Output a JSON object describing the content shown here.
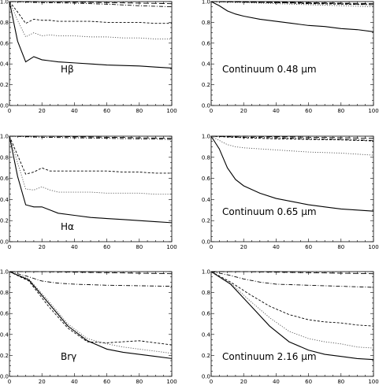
{
  "chart_data": [
    {
      "type": "line",
      "label": "Hβ",
      "xlim": [
        0,
        100
      ],
      "ylim": [
        0,
        1
      ],
      "xticks": [
        "0",
        "20",
        "40",
        "60",
        "80",
        "100"
      ],
      "yticks": [
        "0.0",
        "0.2",
        "0.4",
        "0.6",
        "0.8",
        "1.0"
      ],
      "series": [
        {
          "style": "solid",
          "x": [
            0,
            5,
            10,
            15,
            20,
            25,
            30,
            40,
            50,
            60,
            70,
            80,
            90,
            100
          ],
          "y": [
            1.0,
            0.62,
            0.42,
            0.47,
            0.44,
            0.43,
            0.42,
            0.41,
            0.4,
            0.39,
            0.385,
            0.38,
            0.37,
            0.36
          ]
        },
        {
          "style": "dotted",
          "x": [
            0,
            5,
            10,
            15,
            20,
            25,
            30,
            40,
            50,
            60,
            70,
            80,
            90,
            100
          ],
          "y": [
            1.0,
            0.82,
            0.66,
            0.7,
            0.67,
            0.68,
            0.67,
            0.67,
            0.66,
            0.66,
            0.65,
            0.65,
            0.64,
            0.64
          ]
        },
        {
          "style": "dashed",
          "x": [
            0,
            5,
            10,
            15,
            20,
            25,
            30,
            40,
            50,
            60,
            70,
            80,
            90,
            100
          ],
          "y": [
            1.0,
            0.9,
            0.79,
            0.83,
            0.82,
            0.82,
            0.81,
            0.81,
            0.81,
            0.8,
            0.8,
            0.8,
            0.79,
            0.79
          ]
        },
        {
          "style": "dashdot",
          "x": [
            0,
            20,
            40,
            60,
            80,
            100
          ],
          "y": [
            1.0,
            0.99,
            0.985,
            0.975,
            0.96,
            0.95
          ]
        },
        {
          "style": "longdash",
          "x": [
            0,
            20,
            40,
            60,
            80,
            100
          ],
          "y": [
            1.0,
            1.0,
            0.995,
            0.99,
            0.985,
            0.98
          ]
        }
      ]
    },
    {
      "type": "line",
      "label": "Continuum 0.48 μm",
      "xlim": [
        0,
        100
      ],
      "ylim": [
        0,
        1
      ],
      "xticks": [
        "0",
        "20",
        "40",
        "60",
        "80",
        "100"
      ],
      "yticks": [
        "0.0",
        "0.2",
        "0.4",
        "0.6",
        "0.8",
        "1.0"
      ],
      "series": [
        {
          "style": "solid",
          "x": [
            0,
            5,
            10,
            15,
            20,
            30,
            40,
            50,
            60,
            70,
            80,
            90,
            100
          ],
          "y": [
            1.0,
            0.96,
            0.91,
            0.88,
            0.86,
            0.83,
            0.81,
            0.79,
            0.77,
            0.76,
            0.74,
            0.73,
            0.71
          ]
        },
        {
          "style": "dotted",
          "x": [
            0,
            20,
            40,
            60,
            80,
            100
          ],
          "y": [
            1.0,
            0.99,
            0.98,
            0.97,
            0.96,
            0.95
          ]
        },
        {
          "style": "dashed",
          "x": [
            0,
            20,
            40,
            60,
            80,
            100
          ],
          "y": [
            1.0,
            0.995,
            0.99,
            0.98,
            0.975,
            0.97
          ]
        },
        {
          "style": "dashdot",
          "x": [
            0,
            20,
            40,
            60,
            80,
            100
          ],
          "y": [
            1.0,
            0.995,
            0.99,
            0.985,
            0.98,
            0.97
          ]
        },
        {
          "style": "longdash",
          "x": [
            0,
            20,
            40,
            60,
            80,
            100
          ],
          "y": [
            1.0,
            1.0,
            0.995,
            0.99,
            0.985,
            0.98
          ]
        }
      ]
    },
    {
      "type": "line",
      "label": "Hα",
      "xlim": [
        0,
        100
      ],
      "ylim": [
        0,
        1
      ],
      "xticks": [
        "0",
        "20",
        "40",
        "60",
        "80",
        "100"
      ],
      "yticks": [
        "0.0",
        "0.2",
        "0.4",
        "0.6",
        "0.8",
        "1.0"
      ],
      "series": [
        {
          "style": "solid",
          "x": [
            0,
            5,
            10,
            15,
            20,
            25,
            30,
            40,
            50,
            60,
            70,
            80,
            90,
            100
          ],
          "y": [
            1.0,
            0.62,
            0.35,
            0.33,
            0.33,
            0.3,
            0.27,
            0.25,
            0.23,
            0.22,
            0.21,
            0.2,
            0.19,
            0.18
          ]
        },
        {
          "style": "dotted",
          "x": [
            0,
            5,
            10,
            15,
            20,
            25,
            30,
            40,
            50,
            60,
            70,
            80,
            90,
            100
          ],
          "y": [
            1.0,
            0.75,
            0.5,
            0.49,
            0.52,
            0.49,
            0.47,
            0.47,
            0.47,
            0.46,
            0.46,
            0.46,
            0.45,
            0.45
          ]
        },
        {
          "style": "dashed",
          "x": [
            0,
            5,
            10,
            15,
            20,
            25,
            30,
            40,
            50,
            60,
            70,
            80,
            90,
            100
          ],
          "y": [
            1.0,
            0.82,
            0.64,
            0.66,
            0.7,
            0.67,
            0.67,
            0.67,
            0.67,
            0.67,
            0.66,
            0.66,
            0.65,
            0.65
          ]
        },
        {
          "style": "dashdot",
          "x": [
            0,
            20,
            40,
            60,
            80,
            100
          ],
          "y": [
            1.0,
            0.99,
            0.985,
            0.98,
            0.975,
            0.97
          ]
        },
        {
          "style": "longdash",
          "x": [
            0,
            20,
            40,
            60,
            80,
            100
          ],
          "y": [
            1.0,
            1.0,
            0.995,
            0.99,
            0.985,
            0.98
          ]
        }
      ]
    },
    {
      "type": "line",
      "label": "Continuum 0.65 μm",
      "xlim": [
        0,
        100
      ],
      "ylim": [
        0,
        1
      ],
      "xticks": [
        "0",
        "20",
        "40",
        "60",
        "80",
        "100"
      ],
      "yticks": [
        "0.0",
        "0.2",
        "0.4",
        "0.6",
        "0.8",
        "1.0"
      ],
      "series": [
        {
          "style": "solid",
          "x": [
            0,
            5,
            10,
            15,
            20,
            30,
            40,
            50,
            60,
            70,
            80,
            90,
            100
          ],
          "y": [
            1.0,
            0.88,
            0.7,
            0.59,
            0.53,
            0.46,
            0.41,
            0.38,
            0.35,
            0.33,
            0.31,
            0.3,
            0.29
          ]
        },
        {
          "style": "dotted",
          "x": [
            0,
            5,
            10,
            15,
            20,
            30,
            40,
            60,
            80,
            100
          ],
          "y": [
            1.0,
            0.96,
            0.92,
            0.9,
            0.89,
            0.88,
            0.87,
            0.85,
            0.84,
            0.82
          ]
        },
        {
          "style": "dashed",
          "x": [
            0,
            20,
            40,
            60,
            80,
            100
          ],
          "y": [
            1.0,
            0.985,
            0.975,
            0.97,
            0.965,
            0.955
          ]
        },
        {
          "style": "dashdot",
          "x": [
            0,
            20,
            40,
            60,
            80,
            100
          ],
          "y": [
            1.0,
            0.99,
            0.985,
            0.975,
            0.97,
            0.96
          ]
        },
        {
          "style": "longdash",
          "x": [
            0,
            20,
            40,
            60,
            80,
            100
          ],
          "y": [
            1.0,
            1.0,
            0.995,
            0.99,
            0.985,
            0.98
          ]
        }
      ]
    },
    {
      "type": "line",
      "label": "Brγ",
      "xlim": [
        0,
        100
      ],
      "ylim": [
        0,
        1
      ],
      "xticks": [
        "0",
        "20",
        "40",
        "60",
        "80",
        "100"
      ],
      "yticks": [
        "0.0",
        "0.2",
        "0.4",
        "0.6",
        "0.8",
        "1.0"
      ],
      "series": [
        {
          "style": "solid",
          "x": [
            0,
            12,
            24,
            36,
            48,
            60,
            70,
            80,
            90,
            100
          ],
          "y": [
            1.0,
            0.92,
            0.7,
            0.48,
            0.34,
            0.26,
            0.23,
            0.21,
            0.19,
            0.17
          ]
        },
        {
          "style": "dotted",
          "x": [
            0,
            12,
            24,
            36,
            48,
            60,
            70,
            80,
            90,
            100
          ],
          "y": [
            1.0,
            0.93,
            0.72,
            0.5,
            0.36,
            0.31,
            0.28,
            0.26,
            0.24,
            0.22
          ]
        },
        {
          "style": "dashed",
          "x": [
            0,
            12,
            24,
            36,
            48,
            60,
            70,
            80,
            90,
            100
          ],
          "y": [
            1.0,
            0.91,
            0.67,
            0.46,
            0.33,
            0.32,
            0.33,
            0.34,
            0.32,
            0.3
          ]
        },
        {
          "style": "dashdot",
          "x": [
            0,
            10,
            20,
            30,
            40,
            60,
            80,
            100
          ],
          "y": [
            1.0,
            0.96,
            0.91,
            0.89,
            0.88,
            0.87,
            0.865,
            0.86
          ]
        },
        {
          "style": "longdash",
          "x": [
            0,
            20,
            40,
            60,
            80,
            100
          ],
          "y": [
            1.0,
            1.0,
            0.995,
            0.99,
            0.985,
            0.98
          ]
        }
      ]
    },
    {
      "type": "line",
      "label": "Continuum 2.16 μm",
      "xlim": [
        0,
        100
      ],
      "ylim": [
        0,
        1
      ],
      "xticks": [
        "0",
        "20",
        "40",
        "60",
        "80",
        "100"
      ],
      "yticks": [
        "0.0",
        "0.2",
        "0.4",
        "0.6",
        "0.8",
        "1.0"
      ],
      "series": [
        {
          "style": "solid",
          "x": [
            0,
            12,
            24,
            36,
            48,
            60,
            70,
            80,
            90,
            100
          ],
          "y": [
            1.0,
            0.88,
            0.68,
            0.48,
            0.33,
            0.25,
            0.21,
            0.19,
            0.17,
            0.16
          ]
        },
        {
          "style": "dotted",
          "x": [
            0,
            12,
            24,
            36,
            48,
            60,
            70,
            80,
            90,
            100
          ],
          "y": [
            1.0,
            0.89,
            0.72,
            0.56,
            0.43,
            0.36,
            0.33,
            0.31,
            0.28,
            0.27
          ]
        },
        {
          "style": "dashed",
          "x": [
            0,
            12,
            24,
            36,
            48,
            60,
            70,
            80,
            90,
            100
          ],
          "y": [
            1.0,
            0.9,
            0.78,
            0.67,
            0.59,
            0.54,
            0.52,
            0.51,
            0.49,
            0.48
          ]
        },
        {
          "style": "dashdot",
          "x": [
            0,
            10,
            20,
            30,
            40,
            60,
            80,
            100
          ],
          "y": [
            1.0,
            0.97,
            0.93,
            0.9,
            0.88,
            0.87,
            0.86,
            0.85
          ]
        },
        {
          "style": "longdash",
          "x": [
            0,
            20,
            40,
            60,
            80,
            100
          ],
          "y": [
            1.0,
            1.0,
            0.995,
            0.99,
            0.985,
            0.98
          ]
        }
      ]
    }
  ]
}
